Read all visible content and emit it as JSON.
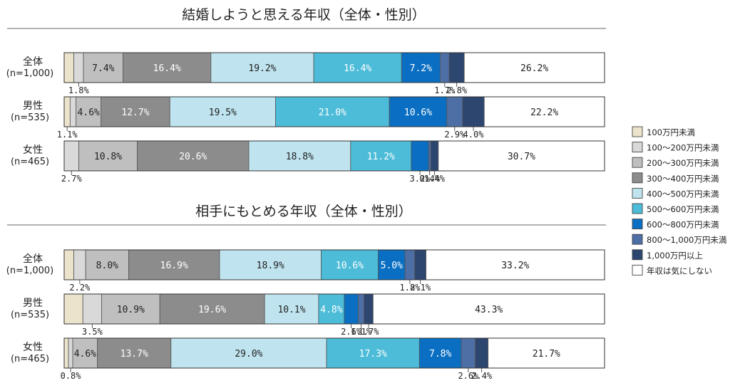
{
  "chart_data": [
    {
      "type": "bar",
      "orientation": "horizontal",
      "stacked": "100%",
      "title": "結婚しようと思える年収（全体・性別）",
      "categories": [
        {
          "name": "全体",
          "n": "(n=1,000)"
        },
        {
          "name": "男性",
          "n": "(n=535)"
        },
        {
          "name": "女性",
          "n": "(n=465)"
        }
      ],
      "series": [
        {
          "name": "100万円未満",
          "values": [
            1.8,
            1.1,
            0.0
          ]
        },
        {
          "name": "100～200万円未満",
          "values": [
            1.8,
            1.1,
            2.7
          ]
        },
        {
          "name": "200～300万円未満",
          "values": [
            7.4,
            4.6,
            10.8
          ]
        },
        {
          "name": "300～400万円未満",
          "values": [
            16.4,
            12.7,
            20.6
          ]
        },
        {
          "name": "400～500万円未満",
          "values": [
            19.2,
            19.5,
            18.8
          ]
        },
        {
          "name": "500～600万円未満",
          "values": [
            16.4,
            21.0,
            11.2
          ]
        },
        {
          "name": "600～800万円未満",
          "values": [
            7.2,
            10.6,
            3.2
          ]
        },
        {
          "name": "800～1,000万円未満",
          "values": [
            1.7,
            2.9,
            0.4
          ]
        },
        {
          "name": "1,000万円以上",
          "values": [
            2.8,
            4.0,
            1.4
          ]
        },
        {
          "name": "年収は気にしない",
          "values": [
            26.2,
            22.2,
            30.7
          ]
        }
      ],
      "labels": [
        [
          null,
          "1.8%",
          "7.4%",
          "16.4%",
          "19.2%",
          "16.4%",
          "7.2%",
          "1.7%",
          "2.8%",
          "26.2%"
        ],
        [
          "1.1%",
          null,
          "4.6%",
          "12.7%",
          "19.5%",
          "21.0%",
          "10.6%",
          "2.9%",
          "4.0%",
          "22.2%"
        ],
        [
          null,
          "2.7%",
          "10.8%",
          "20.6%",
          "18.8%",
          "11.2%",
          "3.2%",
          "0.4%",
          "1.4%",
          "30.7%"
        ]
      ]
    },
    {
      "type": "bar",
      "orientation": "horizontal",
      "stacked": "100%",
      "title": "相手にもとめる年収（全体・性別）",
      "categories": [
        {
          "name": "全体",
          "n": "(n=1,000)"
        },
        {
          "name": "男性",
          "n": "(n=535)"
        },
        {
          "name": "女性",
          "n": "(n=465)"
        }
      ],
      "series": [
        {
          "name": "100万円未満",
          "values": [
            1.8,
            3.5,
            0.8
          ]
        },
        {
          "name": "100～200万円未満",
          "values": [
            2.2,
            3.5,
            0.8
          ]
        },
        {
          "name": "200～300万円未満",
          "values": [
            8.0,
            10.9,
            4.6
          ]
        },
        {
          "name": "300～400万円未満",
          "values": [
            16.9,
            19.6,
            13.7
          ]
        },
        {
          "name": "400～500万円未満",
          "values": [
            18.9,
            10.1,
            29.0
          ]
        },
        {
          "name": "500～600万円未満",
          "values": [
            10.6,
            4.8,
            17.3
          ]
        },
        {
          "name": "600～800万円未満",
          "values": [
            5.0,
            2.6,
            7.8
          ]
        },
        {
          "name": "800～1,000万円未満",
          "values": [
            1.8,
            1.1,
            2.6
          ]
        },
        {
          "name": "1,000万円以上",
          "values": [
            2.1,
            1.7,
            2.4
          ]
        },
        {
          "name": "年収は気にしない",
          "values": [
            33.2,
            43.3,
            21.7
          ]
        }
      ],
      "labels": [
        [
          null,
          "2.2%",
          "8.0%",
          "16.9%",
          "18.9%",
          "10.6%",
          "5.0%",
          "1.8%",
          "2.1%",
          "33.2%"
        ],
        [
          null,
          "3.5%",
          "10.9%",
          "19.6%",
          "10.1%",
          "4.8%",
          "2.6%",
          "1.1%",
          "1.7%",
          "43.3%"
        ],
        [
          null,
          "0.8%",
          "4.6%",
          "13.7%",
          "29.0%",
          "17.3%",
          "7.8%",
          "2.6%",
          "2.4%",
          "21.7%"
        ]
      ]
    }
  ],
  "legend": {
    "items": [
      {
        "label": "100万円未満",
        "color": "#ebe3cb"
      },
      {
        "label": "100～200万円未満",
        "color": "#d9d9d9"
      },
      {
        "label": "200～300万円未満",
        "color": "#bfbfbf"
      },
      {
        "label": "300～400万円未満",
        "color": "#8c8c8c"
      },
      {
        "label": "400～500万円未満",
        "color": "#bfe4ef"
      },
      {
        "label": "500～600万円未満",
        "color": "#4cbcd8"
      },
      {
        "label": "600～800万円未満",
        "color": "#0a6fc2"
      },
      {
        "label": "800～1,000万円未満",
        "color": "#4e6ea6"
      },
      {
        "label": "1,000万円以上",
        "color": "#2d4670"
      },
      {
        "label": "年収は気にしない",
        "color": "#ffffff"
      }
    ]
  }
}
